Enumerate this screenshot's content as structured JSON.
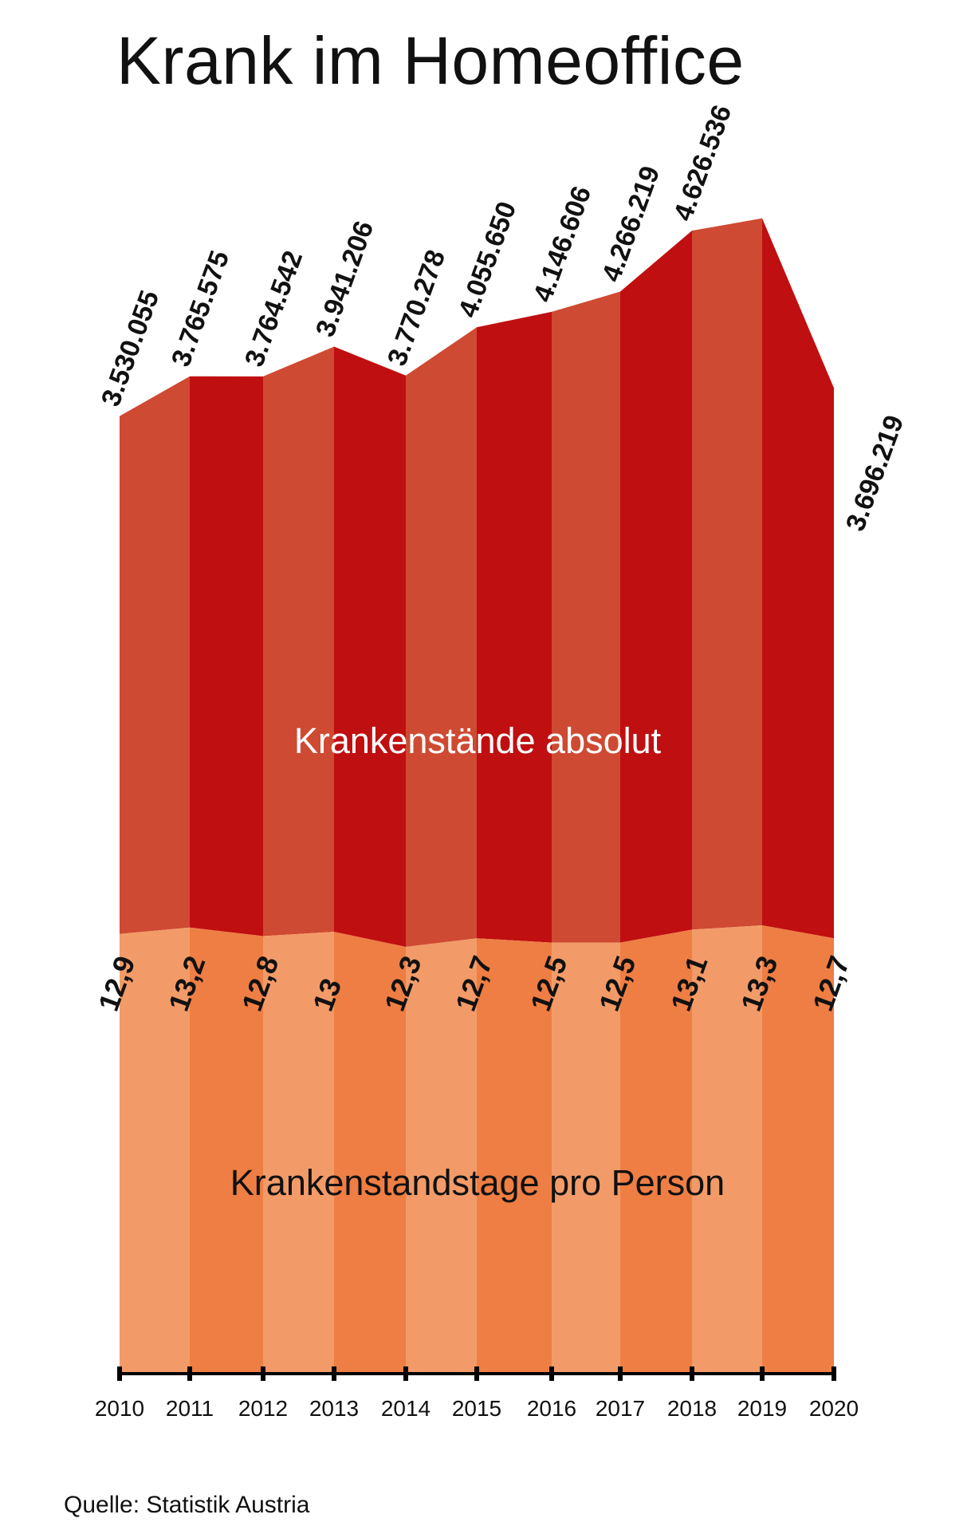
{
  "title": "Krank im Homeoffice",
  "source": "Quelle: Statistik Austria",
  "colors": {
    "top_light": "#cf4a32",
    "top_dark": "#c00f10",
    "bottom_light": "#f29b68",
    "bottom_dark": "#ee7e44",
    "axis": "#000000"
  },
  "chart_data": {
    "type": "area",
    "categories": [
      "2010",
      "2011",
      "2012",
      "2013",
      "2014",
      "2015",
      "2016",
      "2017",
      "2018",
      "2019",
      "2020"
    ],
    "series": [
      {
        "name": "Krankenstände absolut",
        "values": [
          3530055,
          3765575,
          3764542,
          3941206,
          3770278,
          4055650,
          4146606,
          4266219,
          4626536,
          4700000,
          3696219
        ],
        "labels": [
          "3.530.055",
          "3.765.575",
          "3.764.542",
          "3.941.206",
          "3.770.278",
          "4.055.650",
          "4.146.606",
          "4.266.219",
          "4.626.536",
          "",
          "3.696.219"
        ]
      },
      {
        "name": "Krankenstandstage pro Person",
        "values": [
          12.9,
          13.2,
          12.8,
          13,
          12.3,
          12.7,
          12.5,
          12.5,
          13.1,
          13.3,
          12.7
        ],
        "labels": [
          "12,9",
          "13,2",
          "12,8",
          "13",
          "12,3",
          "12,7",
          "12,5",
          "12,5",
          "13,1",
          "13,3",
          "12,7"
        ]
      }
    ],
    "xlabel": "",
    "ylabel": "",
    "grid": false
  }
}
